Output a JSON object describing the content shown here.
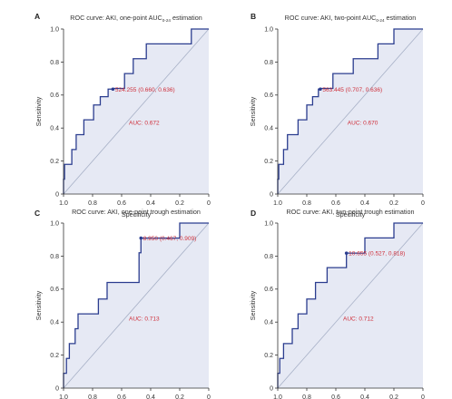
{
  "chart_data": [
    {
      "type": "line",
      "panel_letter": "A",
      "title": "ROC curve: AKI, one-point AUC",
      "title_subscript": "0-24",
      "title_suffix": " estimation",
      "xlabel": "Specificity",
      "ylabel": "Sensitivity",
      "xlim": [
        1.0,
        0.0
      ],
      "ylim": [
        0.0,
        1.0
      ],
      "x_ticks": [
        "1.0",
        "0.8",
        "0.6",
        "0.4",
        "0.2",
        "0"
      ],
      "y_ticks": [
        "0",
        "0.2",
        "0.4",
        "0.6",
        "0.8",
        "1.0"
      ],
      "grid": false,
      "series": [
        {
          "color": "#2b3d8f",
          "fill": "#e6e9f4",
          "x": [
            1.0,
            1.0,
            0.993,
            0.993,
            0.943,
            0.943,
            0.913,
            0.913,
            0.86,
            0.86,
            0.793,
            0.793,
            0.747,
            0.747,
            0.693,
            0.693,
            0.66,
            0.66,
            0.58,
            0.58,
            0.52,
            0.52,
            0.43,
            0.43,
            0.347,
            0.347,
            0.12,
            0.12,
            0.0
          ],
          "y": [
            0.0,
            0.09,
            0.09,
            0.18,
            0.18,
            0.27,
            0.27,
            0.36,
            0.36,
            0.45,
            0.45,
            0.54,
            0.54,
            0.59,
            0.59,
            0.636,
            0.636,
            0.64,
            0.64,
            0.73,
            0.73,
            0.82,
            0.82,
            0.91,
            0.91,
            0.91,
            0.91,
            1.0,
            1.0
          ]
        }
      ],
      "reference_line": {
        "color": "#a7b0c6",
        "from": [
          1.0,
          0.0
        ],
        "to": [
          0.0,
          1.0
        ]
      },
      "cutoff_point": {
        "x": 0.66,
        "y": 0.636,
        "label": "524.255 (0.660, 0.636)",
        "color": "#cf2f3a"
      },
      "auc_label": "AUC: 0.672",
      "auc_position": [
        0.55,
        0.42
      ]
    },
    {
      "type": "line",
      "panel_letter": "B",
      "title": "ROC curve: AKI, two-point AUC",
      "title_subscript": "0-24",
      "title_suffix": " estimation",
      "xlabel": "Specificity",
      "ylabel": "Sensitivity",
      "xlim": [
        1.0,
        0.0
      ],
      "ylim": [
        0.0,
        1.0
      ],
      "x_ticks": [
        "1.0",
        "0.8",
        "0.6",
        "0.4",
        "0.2",
        "0"
      ],
      "y_ticks": [
        "0",
        "0.2",
        "0.4",
        "0.6",
        "0.8",
        "1.0"
      ],
      "grid": false,
      "series": [
        {
          "color": "#2b3d8f",
          "fill": "#e6e9f4",
          "x": [
            1.0,
            1.0,
            0.993,
            0.993,
            0.96,
            0.96,
            0.933,
            0.933,
            0.86,
            0.86,
            0.8,
            0.8,
            0.76,
            0.76,
            0.72,
            0.72,
            0.707,
            0.707,
            0.62,
            0.62,
            0.54,
            0.54,
            0.48,
            0.48,
            0.31,
            0.31,
            0.2,
            0.2,
            0.0
          ],
          "y": [
            0.0,
            0.09,
            0.09,
            0.18,
            0.18,
            0.27,
            0.27,
            0.36,
            0.36,
            0.45,
            0.45,
            0.54,
            0.54,
            0.59,
            0.59,
            0.636,
            0.636,
            0.64,
            0.64,
            0.73,
            0.73,
            0.73,
            0.73,
            0.82,
            0.82,
            0.91,
            0.91,
            1.0,
            1.0
          ]
        }
      ],
      "reference_line": {
        "color": "#a7b0c6",
        "from": [
          1.0,
          0.0
        ],
        "to": [
          0.0,
          1.0
        ]
      },
      "cutoff_point": {
        "x": 0.707,
        "y": 0.636,
        "label": "563.445 (0.707, 0.636)",
        "color": "#cf2f3a"
      },
      "auc_label": "AUC: 0.670",
      "auc_position": [
        0.52,
        0.42
      ]
    },
    {
      "type": "line",
      "panel_letter": "C",
      "title": "ROC curve: AKI, one-point trough estimation",
      "title_subscript": "",
      "title_suffix": "",
      "xlabel": "Specificity",
      "ylabel": "Sensitivity",
      "xlim": [
        1.0,
        0.0
      ],
      "ylim": [
        0.0,
        1.0
      ],
      "x_ticks": [
        "1.0",
        "0.8",
        "0.6",
        "0.4",
        "0.2",
        "0"
      ],
      "y_ticks": [
        "0",
        "0.2",
        "0.4",
        "0.6",
        "0.8",
        "1.0"
      ],
      "grid": false,
      "series": [
        {
          "color": "#2b3d8f",
          "fill": "#e6e9f4",
          "x": [
            1.0,
            1.0,
            0.98,
            0.98,
            0.96,
            0.96,
            0.92,
            0.92,
            0.9,
            0.9,
            0.76,
            0.76,
            0.7,
            0.7,
            0.48,
            0.48,
            0.467,
            0.467,
            0.2,
            0.2,
            0.0
          ],
          "y": [
            0.0,
            0.09,
            0.09,
            0.18,
            0.18,
            0.27,
            0.27,
            0.36,
            0.36,
            0.45,
            0.45,
            0.54,
            0.54,
            0.64,
            0.64,
            0.82,
            0.82,
            0.909,
            0.909,
            1.0,
            1.0
          ]
        }
      ],
      "reference_line": {
        "color": "#a7b0c6",
        "from": [
          1.0,
          0.0
        ],
        "to": [
          0.0,
          1.0
        ]
      },
      "cutoff_point": {
        "x": 0.467,
        "y": 0.909,
        "label": "8.950 (0.467, 0.909)",
        "color": "#cf2f3a"
      },
      "auc_label": "AUC: 0.713",
      "auc_position": [
        0.55,
        0.41
      ]
    },
    {
      "type": "line",
      "panel_letter": "D",
      "title": "ROC curve: AKI, two-point trough estimation",
      "title_subscript": "",
      "title_suffix": "",
      "xlabel": "Specificity",
      "ylabel": "Sensitivity",
      "xlim": [
        1.0,
        0.0
      ],
      "ylim": [
        0.0,
        1.0
      ],
      "x_ticks": [
        "1.0",
        "0.8",
        "0.6",
        "0.4",
        "0.2",
        "0"
      ],
      "y_ticks": [
        "0",
        "0.2",
        "0.4",
        "0.6",
        "0.8",
        "1.0"
      ],
      "grid": false,
      "series": [
        {
          "color": "#2b3d8f",
          "fill": "#e6e9f4",
          "x": [
            1.0,
            1.0,
            0.986,
            0.986,
            0.96,
            0.96,
            0.9,
            0.9,
            0.86,
            0.86,
            0.8,
            0.8,
            0.74,
            0.74,
            0.66,
            0.66,
            0.527,
            0.527,
            0.4,
            0.4,
            0.2,
            0.2,
            0.0
          ],
          "y": [
            0.0,
            0.09,
            0.09,
            0.18,
            0.18,
            0.27,
            0.27,
            0.36,
            0.36,
            0.45,
            0.45,
            0.54,
            0.54,
            0.64,
            0.64,
            0.73,
            0.73,
            0.818,
            0.818,
            0.91,
            0.91,
            1.0,
            1.0
          ]
        }
      ],
      "reference_line": {
        "color": "#a7b0c6",
        "from": [
          1.0,
          0.0
        ],
        "to": [
          0.0,
          1.0
        ]
      },
      "cutoff_point": {
        "x": 0.527,
        "y": 0.818,
        "label": "10.655 (0.527, 0.818)",
        "color": "#cf2f3a"
      },
      "auc_label": "AUC: 0.712",
      "auc_position": [
        0.55,
        0.41
      ]
    }
  ]
}
